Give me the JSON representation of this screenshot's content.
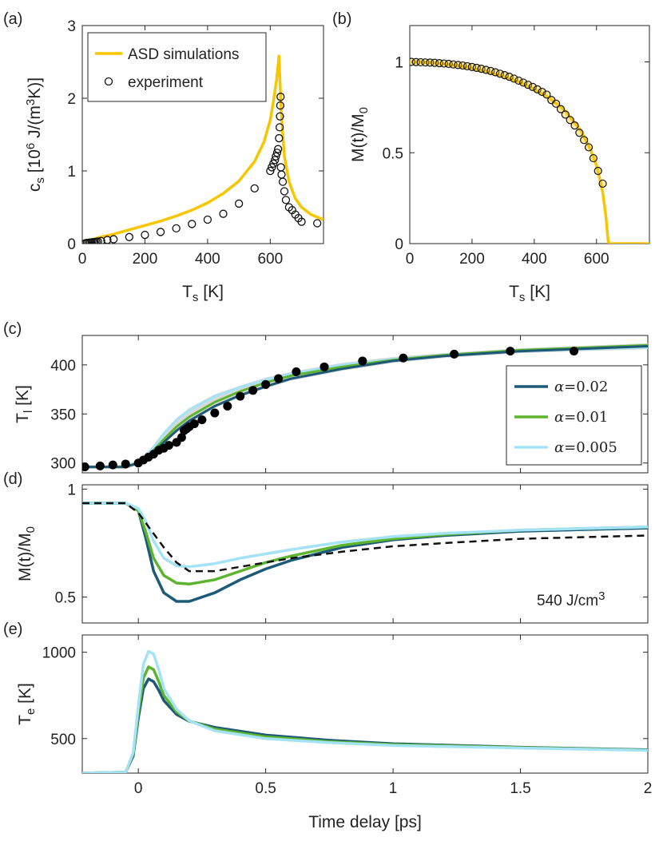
{
  "chart_data": [
    {
      "panel": "(a)",
      "type": "line+scatter",
      "xlabel": "T",
      "xlabel_sub": "s",
      "xlabel_unit": " [K]",
      "ylabel_parts": [
        "c",
        "s",
        " [10",
        "6",
        " J/(m",
        "3",
        "K)]"
      ],
      "xlim": [
        0,
        770
      ],
      "ylim": [
        0,
        3
      ],
      "xticks": [
        0,
        200,
        400,
        600
      ],
      "yticks": [
        0,
        1,
        2,
        3
      ],
      "legend": [
        "ASD simulations",
        "experiment"
      ],
      "series": [
        {
          "name": "ASD simulations",
          "style": "line",
          "color": "#f7c600",
          "x": [
            10,
            50,
            100,
            150,
            200,
            250,
            300,
            350,
            400,
            450,
            500,
            550,
            580,
            600,
            610,
            620,
            628,
            635,
            645,
            660,
            680,
            700,
            730,
            770
          ],
          "y": [
            0.02,
            0.08,
            0.13,
            0.19,
            0.25,
            0.31,
            0.38,
            0.46,
            0.56,
            0.69,
            0.86,
            1.13,
            1.4,
            1.7,
            1.95,
            2.25,
            2.58,
            1.8,
            1.2,
            0.85,
            0.62,
            0.5,
            0.4,
            0.33
          ]
        },
        {
          "name": "experiment",
          "style": "open-circle",
          "x": [
            10,
            15,
            20,
            25,
            30,
            35,
            40,
            45,
            50,
            60,
            80,
            100,
            150,
            200,
            250,
            300,
            350,
            400,
            450,
            500,
            550,
            600,
            605,
            610,
            615,
            618,
            622,
            625,
            628,
            630,
            631,
            632,
            633,
            634,
            636,
            640,
            645,
            650,
            660,
            670,
            680,
            690,
            700,
            750
          ],
          "y": [
            0.005,
            0.01,
            0.012,
            0.015,
            0.018,
            0.02,
            0.022,
            0.025,
            0.028,
            0.035,
            0.05,
            0.06,
            0.09,
            0.12,
            0.16,
            0.21,
            0.27,
            0.33,
            0.41,
            0.55,
            0.76,
            1.0,
            1.05,
            1.1,
            1.15,
            1.2,
            1.25,
            1.3,
            1.45,
            1.6,
            1.75,
            1.9,
            2.02,
            1.05,
            0.95,
            0.85,
            0.72,
            0.6,
            0.5,
            0.46,
            0.4,
            0.35,
            0.3,
            0.28
          ]
        }
      ]
    },
    {
      "panel": "(b)",
      "type": "line+scatter",
      "xlabel": "T",
      "xlabel_sub": "s",
      "xlabel_unit": " [K]",
      "ylabel_parts": [
        "M(t)/M",
        "0"
      ],
      "xlim": [
        0,
        770
      ],
      "ylim": [
        0,
        1.2
      ],
      "xticks": [
        0,
        200,
        400,
        600
      ],
      "yticks": [
        0,
        0.5,
        1
      ],
      "series": [
        {
          "name": "ASD simulations",
          "style": "line",
          "color": "#f7c600",
          "x": [
            0,
            50,
            100,
            150,
            200,
            250,
            300,
            350,
            400,
            450,
            500,
            550,
            580,
            600,
            610,
            620,
            630,
            637,
            640,
            650,
            700,
            770
          ],
          "y": [
            1.0,
            0.998,
            0.99,
            0.98,
            0.965,
            0.945,
            0.92,
            0.89,
            0.85,
            0.8,
            0.73,
            0.62,
            0.52,
            0.43,
            0.36,
            0.28,
            0.15,
            0.02,
            0.0,
            0.0,
            0.0,
            0.0
          ]
        },
        {
          "name": "experiment",
          "style": "open-circle-yellow",
          "x": [
            5,
            20,
            35,
            50,
            65,
            80,
            95,
            110,
            125,
            140,
            155,
            170,
            185,
            200,
            215,
            230,
            245,
            260,
            275,
            290,
            305,
            320,
            335,
            350,
            365,
            380,
            395,
            410,
            425,
            440,
            455,
            470,
            485,
            500,
            515,
            530,
            545,
            560,
            575,
            590,
            605,
            620
          ],
          "y": [
            1.0,
            0.999,
            0.998,
            0.997,
            0.996,
            0.995,
            0.993,
            0.991,
            0.989,
            0.986,
            0.983,
            0.98,
            0.976,
            0.972,
            0.967,
            0.962,
            0.956,
            0.95,
            0.943,
            0.935,
            0.927,
            0.918,
            0.908,
            0.897,
            0.886,
            0.874,
            0.862,
            0.849,
            0.835,
            0.82,
            0.79,
            0.77,
            0.74,
            0.71,
            0.68,
            0.65,
            0.61,
            0.57,
            0.53,
            0.47,
            0.4,
            0.33
          ]
        }
      ]
    },
    {
      "panel": "(c)",
      "type": "line+scatter",
      "ylabel_parts": [
        "T",
        "l",
        " [K]"
      ],
      "xlim": [
        -0.22,
        2.0
      ],
      "ylim": [
        290,
        430
      ],
      "xticks": [
        0,
        0.5,
        1,
        1.5,
        2
      ],
      "yticks": [
        300,
        350,
        400
      ],
      "legend_alpha": [
        "0.02",
        "0.01",
        "0.005"
      ],
      "series": [
        {
          "name": "α=0.005",
          "style": "line",
          "color": "#a4e3f6",
          "x": [
            -0.22,
            -0.05,
            0.0,
            0.05,
            0.1,
            0.15,
            0.2,
            0.3,
            0.4,
            0.5,
            0.6,
            0.8,
            1.0,
            1.2,
            1.5,
            2.0
          ],
          "y": [
            296,
            296,
            301,
            313,
            330,
            344,
            354,
            368,
            377,
            385,
            391,
            400,
            406,
            410,
            414,
            418
          ]
        },
        {
          "name": "α=0.01",
          "style": "line",
          "color": "#5db42e",
          "x": [
            -0.22,
            -0.05,
            0.0,
            0.05,
            0.1,
            0.15,
            0.2,
            0.3,
            0.4,
            0.5,
            0.6,
            0.8,
            1.0,
            1.2,
            1.5,
            2.0
          ],
          "y": [
            296,
            296,
            300,
            310,
            324,
            337,
            347,
            362,
            373,
            382,
            389,
            398,
            405,
            410,
            415,
            420
          ]
        },
        {
          "name": "α=0.02",
          "style": "line",
          "color": "#1c5a78",
          "x": [
            -0.22,
            -0.05,
            0.0,
            0.05,
            0.1,
            0.15,
            0.2,
            0.3,
            0.4,
            0.5,
            0.6,
            0.8,
            1.0,
            1.2,
            1.5,
            2.0
          ],
          "y": [
            296,
            296,
            300,
            309,
            321,
            333,
            343,
            358,
            369,
            378,
            386,
            396,
            404,
            409,
            414,
            419
          ]
        },
        {
          "name": "experiment",
          "style": "filled-circle",
          "x": [
            -0.21,
            -0.15,
            -0.1,
            -0.05,
            0.0,
            0.02,
            0.04,
            0.06,
            0.08,
            0.1,
            0.12,
            0.15,
            0.17,
            0.18,
            0.19,
            0.2,
            0.22,
            0.25,
            0.3,
            0.35,
            0.4,
            0.45,
            0.5,
            0.55,
            0.62,
            0.73,
            0.88,
            1.04,
            1.24,
            1.46,
            1.71
          ],
          "y": [
            296,
            297,
            298,
            299,
            300,
            303,
            306,
            309,
            313,
            315,
            318,
            321,
            326,
            333,
            335,
            337,
            340,
            344,
            351,
            358,
            368,
            374,
            380,
            386,
            393,
            398,
            404,
            407,
            411,
            414,
            414
          ]
        }
      ]
    },
    {
      "panel": "(d)",
      "type": "line",
      "ylabel_parts": [
        "M(t)/M",
        "0"
      ],
      "xlim": [
        -0.22,
        2.0
      ],
      "ylim": [
        0.38,
        1.02
      ],
      "xticks": [
        0,
        0.5,
        1,
        1.5,
        2
      ],
      "yticks": [
        0.5,
        1
      ],
      "annotation": "540 J/cm",
      "annotation_sup": "3",
      "series": [
        {
          "name": "experiment",
          "style": "dashed",
          "color": "#111111",
          "x": [
            -0.22,
            -0.05,
            0.0,
            0.05,
            0.1,
            0.15,
            0.2,
            0.3,
            0.4,
            0.5,
            0.6,
            0.8,
            1.0,
            1.2,
            1.5,
            2.0
          ],
          "y": [
            0.935,
            0.935,
            0.89,
            0.81,
            0.73,
            0.66,
            0.62,
            0.62,
            0.64,
            0.66,
            0.68,
            0.71,
            0.735,
            0.75,
            0.77,
            0.785
          ]
        },
        {
          "name": "α=0.02",
          "style": "line",
          "color": "#1c5a78",
          "x": [
            -0.22,
            -0.05,
            0.0,
            0.03,
            0.06,
            0.1,
            0.15,
            0.2,
            0.3,
            0.4,
            0.5,
            0.6,
            0.8,
            1.0,
            1.2,
            1.5,
            2.0
          ],
          "y": [
            0.935,
            0.935,
            0.9,
            0.77,
            0.62,
            0.52,
            0.48,
            0.48,
            0.52,
            0.58,
            0.63,
            0.67,
            0.73,
            0.765,
            0.785,
            0.805,
            0.82
          ]
        },
        {
          "name": "α=0.01",
          "style": "line",
          "color": "#5db42e",
          "x": [
            -0.22,
            -0.05,
            0.0,
            0.03,
            0.06,
            0.1,
            0.15,
            0.2,
            0.3,
            0.4,
            0.5,
            0.6,
            0.8,
            1.0,
            1.2,
            1.5,
            2.0
          ],
          "y": [
            0.935,
            0.935,
            0.9,
            0.8,
            0.68,
            0.6,
            0.565,
            0.56,
            0.58,
            0.62,
            0.66,
            0.69,
            0.74,
            0.77,
            0.79,
            0.81,
            0.825
          ]
        },
        {
          "name": "α=0.005",
          "style": "line",
          "color": "#a4e3f6",
          "x": [
            -0.22,
            -0.05,
            0.0,
            0.03,
            0.06,
            0.1,
            0.15,
            0.2,
            0.3,
            0.4,
            0.5,
            0.6,
            0.8,
            1.0,
            1.2,
            1.5,
            2.0
          ],
          "y": [
            0.935,
            0.935,
            0.91,
            0.85,
            0.76,
            0.68,
            0.645,
            0.64,
            0.655,
            0.68,
            0.7,
            0.72,
            0.755,
            0.78,
            0.795,
            0.81,
            0.825
          ]
        }
      ]
    },
    {
      "panel": "(e)",
      "type": "line",
      "ylabel_parts": [
        "T",
        "e",
        " [K]"
      ],
      "xlabel": "Time delay [ps]",
      "xlim": [
        -0.22,
        2.0
      ],
      "ylim": [
        300,
        1100
      ],
      "xticks": [
        0,
        0.5,
        1,
        1.5,
        2
      ],
      "xticklabels": [
        "0",
        "0.5",
        "1",
        "1.5",
        "2"
      ],
      "yticks": [
        500,
        1000
      ],
      "series": [
        {
          "name": "α=0.02",
          "style": "line",
          "color": "#1c5a78",
          "x": [
            -0.22,
            -0.05,
            -0.02,
            0.0,
            0.02,
            0.04,
            0.06,
            0.08,
            0.1,
            0.15,
            0.2,
            0.3,
            0.5,
            0.75,
            1.0,
            1.5,
            2.0
          ],
          "y": [
            300,
            305,
            400,
            620,
            790,
            845,
            830,
            780,
            720,
            640,
            600,
            565,
            520,
            490,
            470,
            450,
            435
          ]
        },
        {
          "name": "α=0.01",
          "style": "line",
          "color": "#5db42e",
          "x": [
            -0.22,
            -0.05,
            -0.02,
            0.0,
            0.02,
            0.04,
            0.06,
            0.08,
            0.1,
            0.15,
            0.2,
            0.3,
            0.5,
            0.75,
            1.0,
            1.5,
            2.0
          ],
          "y": [
            300,
            305,
            410,
            650,
            850,
            915,
            900,
            830,
            750,
            655,
            603,
            555,
            510,
            482,
            465,
            448,
            433
          ]
        },
        {
          "name": "α=0.005",
          "style": "line",
          "color": "#a4e3f6",
          "x": [
            -0.22,
            -0.05,
            -0.02,
            0.0,
            0.02,
            0.04,
            0.06,
            0.08,
            0.1,
            0.15,
            0.2,
            0.3,
            0.5,
            0.75,
            1.0,
            1.5,
            2.0
          ],
          "y": [
            300,
            305,
            420,
            690,
            930,
            1005,
            990,
            900,
            790,
            670,
            603,
            545,
            500,
            476,
            460,
            445,
            432
          ]
        }
      ]
    }
  ]
}
